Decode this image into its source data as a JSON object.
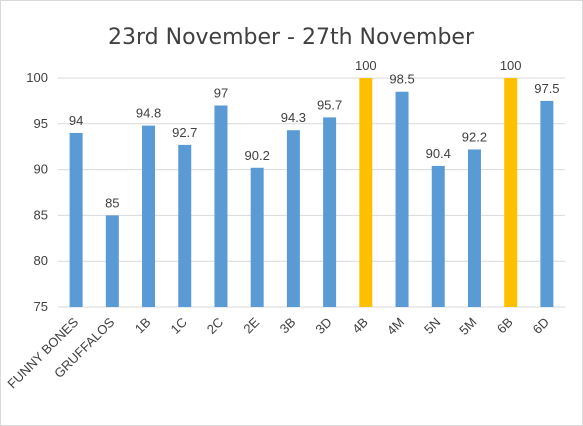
{
  "chart_data": {
    "type": "bar",
    "title": "23rd November - 27th November",
    "xlabel": "",
    "ylabel": "",
    "ylim": [
      75,
      100
    ],
    "yticks": [
      75,
      80,
      85,
      90,
      95,
      100
    ],
    "grid": true,
    "legend": "none",
    "categories": [
      "FUNNY BONES",
      "GRUFFALOS",
      "1B",
      "1C",
      "2C",
      "2E",
      "3B",
      "3D",
      "4B",
      "4M",
      "5N",
      "5M",
      "6B",
      "6D"
    ],
    "values": [
      94,
      85,
      94.8,
      92.7,
      97,
      90.2,
      94.3,
      95.7,
      100,
      98.5,
      90.4,
      92.2,
      100,
      97.5
    ],
    "data_labels": [
      "94",
      "85",
      "94.8",
      "92.7",
      "97",
      "90.2",
      "94.3",
      "95.7",
      "100",
      "98.5",
      "90.4",
      "92.2",
      "100",
      "97.5"
    ],
    "highlighted": [
      false,
      false,
      false,
      false,
      false,
      false,
      false,
      false,
      true,
      false,
      false,
      false,
      true,
      false
    ],
    "colors": {
      "bar": "#5B9BD5",
      "highlight": "#FFC000",
      "grid": "#d9d9d9",
      "text": "#404040"
    }
  }
}
